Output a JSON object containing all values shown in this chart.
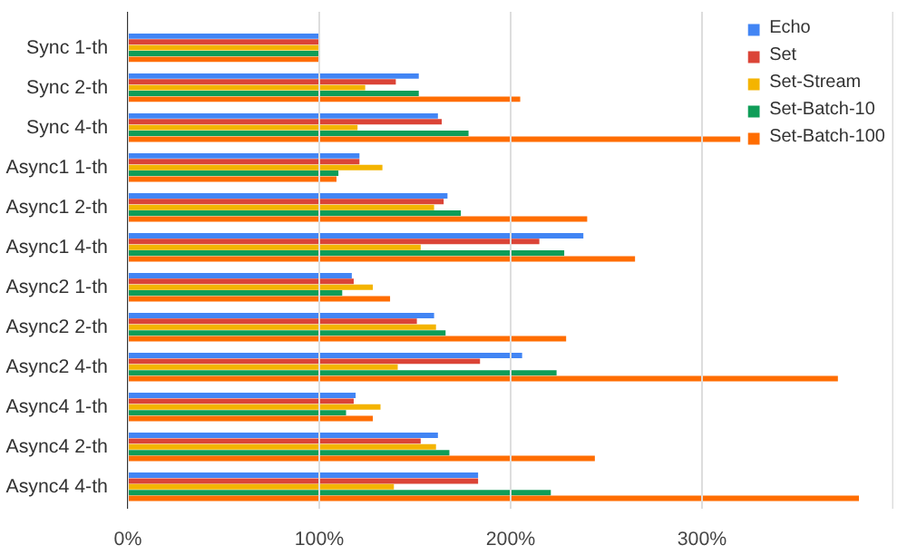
{
  "chart_data": {
    "type": "bar",
    "orientation": "horizontal",
    "categories": [
      "Sync 1-th",
      "Sync 2-th",
      "Sync 4-th",
      "Async1 1-th",
      "Async1 2-th",
      "Async1 4-th",
      "Async2 1-th",
      "Async2 2-th",
      "Async2 4-th",
      "Async4 1-th",
      "Async4 2-th",
      "Async4 4-th"
    ],
    "series": [
      {
        "name": "Echo",
        "color": "#4285f4",
        "values": [
          100,
          152,
          162,
          121,
          167,
          238,
          117,
          160,
          206,
          119,
          162,
          183
        ]
      },
      {
        "name": "Set",
        "color": "#db4437",
        "values": [
          100,
          140,
          164,
          121,
          165,
          215,
          118,
          151,
          184,
          118,
          153,
          183
        ]
      },
      {
        "name": "Set-Stream",
        "color": "#f4b400",
        "values": [
          100,
          124,
          120,
          133,
          160,
          153,
          128,
          161,
          141,
          132,
          161,
          139
        ]
      },
      {
        "name": "Set-Batch-10",
        "color": "#0f9d58",
        "values": [
          100,
          152,
          178,
          110,
          174,
          228,
          112,
          166,
          224,
          114,
          168,
          221
        ]
      },
      {
        "name": "Set-Batch-100",
        "color": "#ff6d01",
        "values": [
          100,
          205,
          320,
          109,
          240,
          265,
          137,
          229,
          371,
          128,
          244,
          382
        ]
      }
    ],
    "xlim": [
      0,
      400
    ],
    "xticks": [
      {
        "value": 0,
        "label": "0%"
      },
      {
        "value": 100,
        "label": "100%"
      },
      {
        "value": 200,
        "label": "200%"
      },
      {
        "value": 300,
        "label": "300%"
      },
      {
        "value": 400,
        "label": null
      }
    ],
    "grid": "x",
    "legend": "top right"
  }
}
